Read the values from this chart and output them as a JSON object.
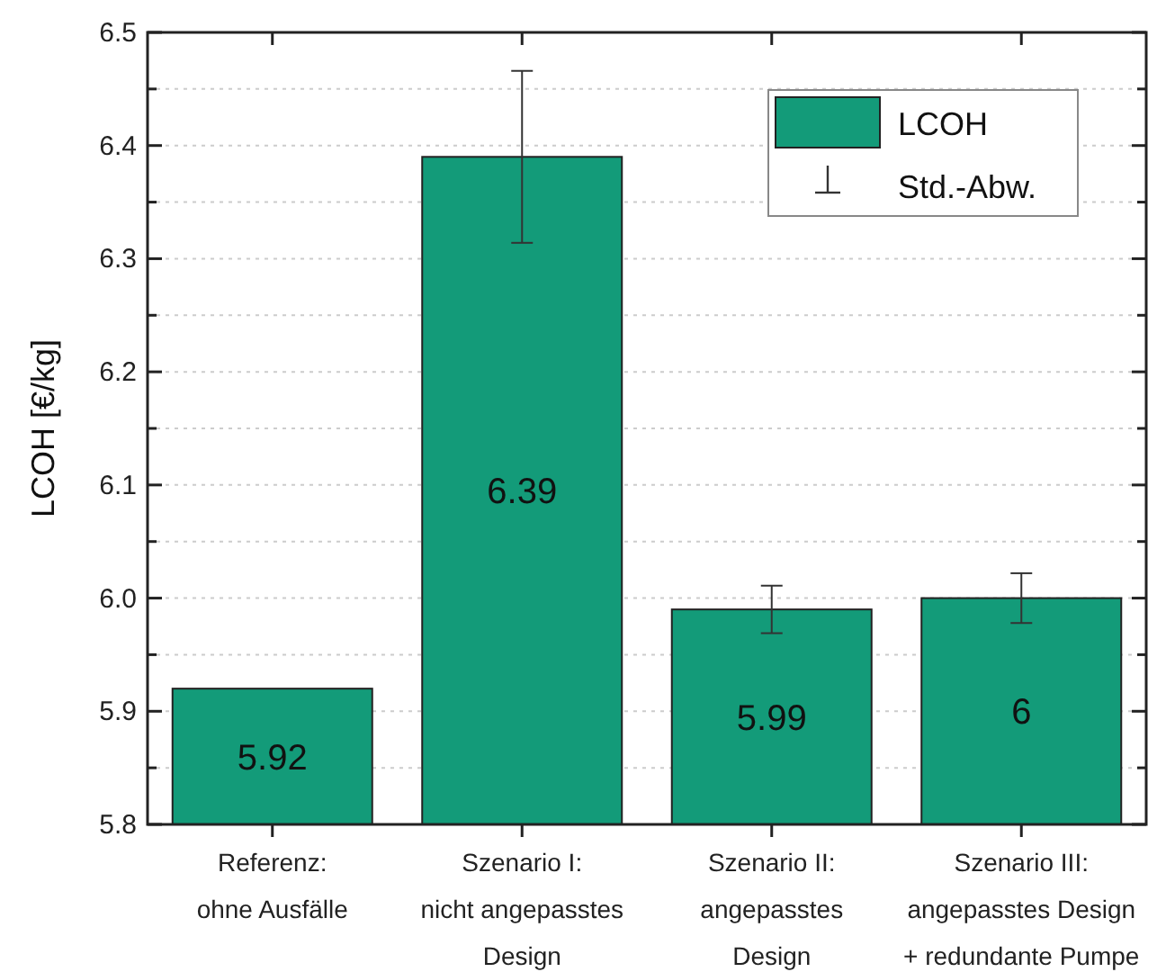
{
  "chart_data": {
    "type": "bar",
    "ylabel": "LCOH [€/kg]",
    "categories": [
      "Referenz:\nohne Ausfälle",
      "Szenario I:\nnicht angepasstes\nDesign",
      "Szenario II:\nangepasstes\nDesign",
      "Szenario III:\nangepasstes Design\n+ redundante Pumpe"
    ],
    "series": [
      {
        "name": "LCOH",
        "color": "#139b79",
        "values": [
          5.92,
          6.39,
          5.99,
          6
        ],
        "errors": [
          null,
          0.076,
          0.021,
          0.022
        ]
      }
    ],
    "ylim": [
      5.8,
      6.5
    ],
    "yticks": [
      5.8,
      {
        "value": 5.85,
        "label": null
      },
      5.9,
      {
        "value": 5.95,
        "label": null
      },
      {
        "value": 6.0,
        "label": "6.0"
      },
      {
        "value": 6.05,
        "label": null
      },
      6.1,
      {
        "value": 6.15,
        "label": null
      },
      6.2,
      {
        "value": 6.25,
        "label": null
      },
      6.3,
      {
        "value": 6.35,
        "label": null
      },
      6.4,
      {
        "value": 6.45,
        "label": null
      },
      6.5
    ],
    "grid": "y",
    "legend": "top right",
    "data_labels": true,
    "annotations": [
      "Std.-Abw."
    ]
  }
}
